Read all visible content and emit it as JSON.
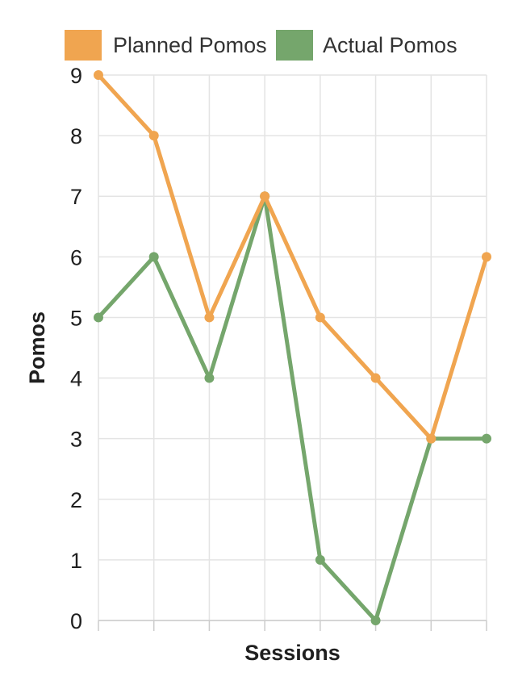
{
  "chart_data": {
    "type": "line",
    "xlabel": "Sessions",
    "ylabel": "Pomos",
    "ylim": [
      0,
      9
    ],
    "y_ticks": [
      "0",
      "1",
      "2",
      "3",
      "4",
      "5",
      "6",
      "7",
      "8",
      "9"
    ],
    "grid": true,
    "legend_position": "top",
    "x": [
      1,
      2,
      3,
      4,
      5,
      6,
      7,
      8
    ],
    "series": [
      {
        "name": "Planned Pomos",
        "color": "#f0a550",
        "values": [
          9,
          8,
          5,
          7,
          5,
          4,
          3,
          6
        ]
      },
      {
        "name": "Actual Pomos",
        "color": "#75a66c",
        "values": [
          5,
          6,
          4,
          7,
          1,
          0,
          3,
          3
        ]
      }
    ]
  }
}
